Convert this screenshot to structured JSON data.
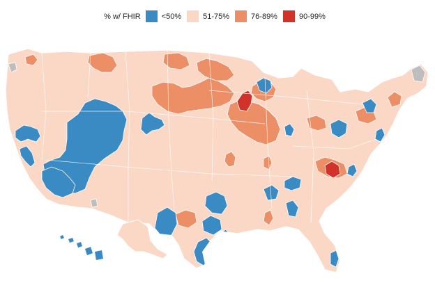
{
  "legend": {
    "title": "% w/ FHIR",
    "items": [
      {
        "label": "<50%",
        "color": "#3a8ac4"
      },
      {
        "label": "51-75%",
        "color": "#fbd8c5"
      },
      {
        "label": "76-89%",
        "color": "#ec8f66"
      },
      {
        "label": "90-99%",
        "color": "#d1322a"
      }
    ]
  },
  "colors": {
    "no_data": "#bdbdbd",
    "boundary": "#ffffff",
    "background": "#ffffff"
  }
}
